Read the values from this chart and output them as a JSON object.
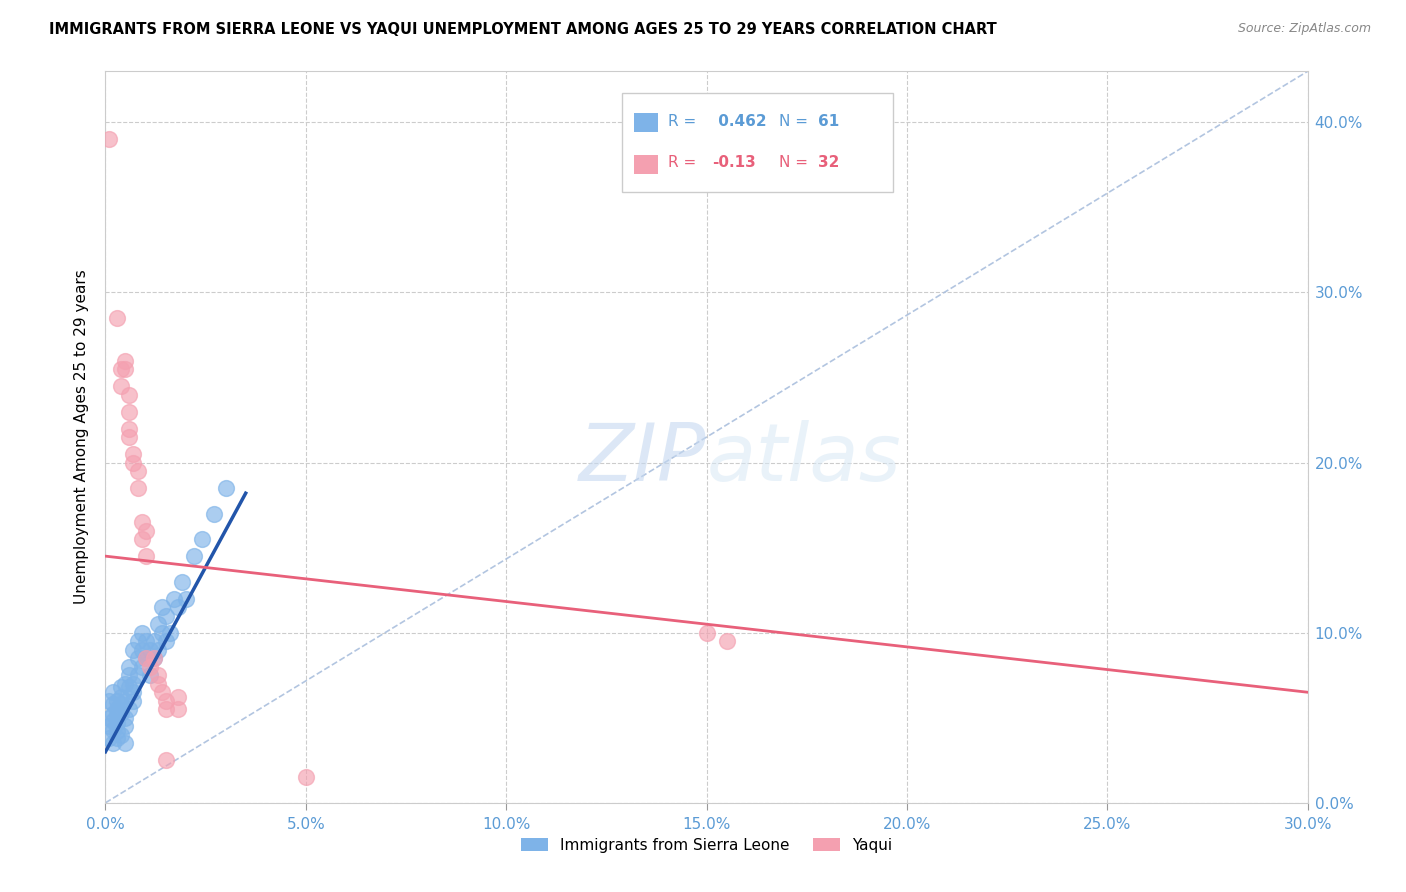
{
  "title": "IMMIGRANTS FROM SIERRA LEONE VS YAQUI UNEMPLOYMENT AMONG AGES 25 TO 29 YEARS CORRELATION CHART",
  "source": "Source: ZipAtlas.com",
  "ylabel": "Unemployment Among Ages 25 to 29 years",
  "legend_blue_label": "Immigrants from Sierra Leone",
  "legend_pink_label": "Yaqui",
  "r_blue": 0.462,
  "n_blue": 61,
  "r_pink": -0.13,
  "n_pink": 32,
  "xlim": [
    0.0,
    0.3
  ],
  "ylim": [
    0.0,
    0.43
  ],
  "xticks": [
    0.0,
    0.05,
    0.1,
    0.15,
    0.2,
    0.25,
    0.3
  ],
  "yticks": [
    0.0,
    0.1,
    0.2,
    0.3,
    0.4
  ],
  "blue_color": "#7EB3E8",
  "pink_color": "#F4A0B0",
  "blue_line_color": "#2255AA",
  "pink_line_color": "#E8607A",
  "diagonal_color": "#AABFDD",
  "watermark_zip": "ZIP",
  "watermark_atlas": "atlas",
  "blue_scatter": [
    [
      0.001,
      0.05
    ],
    [
      0.001,
      0.06
    ],
    [
      0.001,
      0.045
    ],
    [
      0.001,
      0.038
    ],
    [
      0.002,
      0.052
    ],
    [
      0.002,
      0.058
    ],
    [
      0.002,
      0.065
    ],
    [
      0.002,
      0.043
    ],
    [
      0.002,
      0.035
    ],
    [
      0.002,
      0.048
    ],
    [
      0.003,
      0.06
    ],
    [
      0.003,
      0.052
    ],
    [
      0.003,
      0.047
    ],
    [
      0.003,
      0.042
    ],
    [
      0.003,
      0.038
    ],
    [
      0.003,
      0.055
    ],
    [
      0.004,
      0.053
    ],
    [
      0.004,
      0.062
    ],
    [
      0.004,
      0.04
    ],
    [
      0.004,
      0.058
    ],
    [
      0.004,
      0.068
    ],
    [
      0.005,
      0.05
    ],
    [
      0.005,
      0.06
    ],
    [
      0.005,
      0.045
    ],
    [
      0.005,
      0.035
    ],
    [
      0.005,
      0.07
    ],
    [
      0.006,
      0.075
    ],
    [
      0.006,
      0.08
    ],
    [
      0.006,
      0.068
    ],
    [
      0.006,
      0.055
    ],
    [
      0.007,
      0.09
    ],
    [
      0.007,
      0.07
    ],
    [
      0.007,
      0.065
    ],
    [
      0.007,
      0.06
    ],
    [
      0.008,
      0.085
    ],
    [
      0.008,
      0.095
    ],
    [
      0.008,
      0.075
    ],
    [
      0.009,
      0.09
    ],
    [
      0.009,
      0.1
    ],
    [
      0.009,
      0.08
    ],
    [
      0.01,
      0.085
    ],
    [
      0.01,
      0.095
    ],
    [
      0.011,
      0.09
    ],
    [
      0.011,
      0.075
    ],
    [
      0.012,
      0.085
    ],
    [
      0.012,
      0.095
    ],
    [
      0.013,
      0.105
    ],
    [
      0.013,
      0.09
    ],
    [
      0.014,
      0.1
    ],
    [
      0.014,
      0.115
    ],
    [
      0.015,
      0.11
    ],
    [
      0.015,
      0.095
    ],
    [
      0.016,
      0.1
    ],
    [
      0.017,
      0.12
    ],
    [
      0.018,
      0.115
    ],
    [
      0.019,
      0.13
    ],
    [
      0.02,
      0.12
    ],
    [
      0.022,
      0.145
    ],
    [
      0.024,
      0.155
    ],
    [
      0.027,
      0.17
    ],
    [
      0.03,
      0.185
    ]
  ],
  "pink_scatter": [
    [
      0.001,
      0.39
    ],
    [
      0.003,
      0.285
    ],
    [
      0.004,
      0.255
    ],
    [
      0.004,
      0.245
    ],
    [
      0.005,
      0.26
    ],
    [
      0.005,
      0.255
    ],
    [
      0.006,
      0.24
    ],
    [
      0.006,
      0.23
    ],
    [
      0.006,
      0.22
    ],
    [
      0.006,
      0.215
    ],
    [
      0.007,
      0.205
    ],
    [
      0.007,
      0.2
    ],
    [
      0.008,
      0.195
    ],
    [
      0.008,
      0.185
    ],
    [
      0.009,
      0.165
    ],
    [
      0.009,
      0.155
    ],
    [
      0.01,
      0.16
    ],
    [
      0.01,
      0.145
    ],
    [
      0.01,
      0.085
    ],
    [
      0.011,
      0.08
    ],
    [
      0.012,
      0.085
    ],
    [
      0.013,
      0.075
    ],
    [
      0.013,
      0.07
    ],
    [
      0.014,
      0.065
    ],
    [
      0.015,
      0.06
    ],
    [
      0.015,
      0.055
    ],
    [
      0.015,
      0.025
    ],
    [
      0.018,
      0.062
    ],
    [
      0.018,
      0.055
    ],
    [
      0.05,
      0.015
    ],
    [
      0.15,
      0.1
    ],
    [
      0.155,
      0.095
    ]
  ],
  "blue_line_x": [
    0.0,
    0.035
  ],
  "blue_line_y": [
    0.03,
    0.182
  ],
  "pink_line_x": [
    0.0,
    0.3
  ],
  "pink_line_y": [
    0.145,
    0.065
  ]
}
